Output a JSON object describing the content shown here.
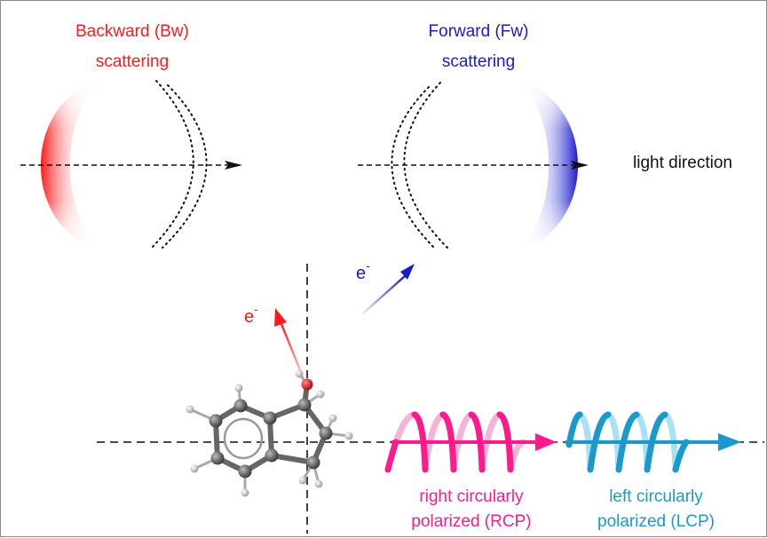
{
  "labels": {
    "backward_line1": "Backward (Bw)",
    "backward_line2": "scattering",
    "forward_line1": "Forward (Fw)",
    "forward_line2": "scattering",
    "light_direction": "light direction",
    "electron_symbol": "e",
    "electron_charge": "-",
    "rcp_line1": "right circularly",
    "rcp_line2": "polarized (RCP)",
    "lcp_line1": "left circularly",
    "lcp_line2": "polarized (LCP)"
  },
  "colors": {
    "backward": "#ff1a1a",
    "forward": "#1a1acc",
    "rcp": "#ff1a8c",
    "rcp_light": "#f7b3d6",
    "lcp": "#1a99cc",
    "lcp_light": "#a8e0f5",
    "text_dark": "#111111",
    "atom_carbon": "#555555",
    "atom_hydrogen": "#d8d8d8",
    "atom_oxygen": "#dd1111"
  }
}
